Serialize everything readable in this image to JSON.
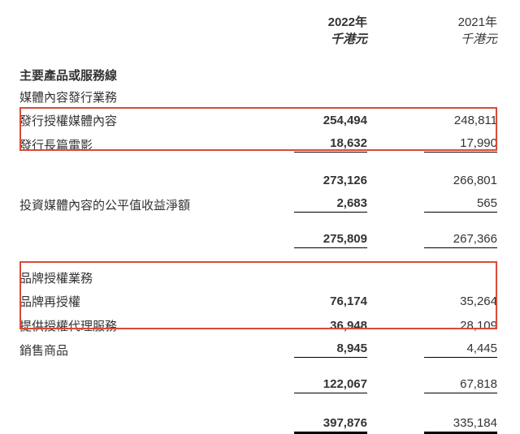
{
  "header": {
    "year2022": "2022年",
    "year2021": "2021年",
    "unit": "千港元"
  },
  "section1_title": "主要產品或服務線",
  "group1_title": "媒體內容發行業務",
  "group1_rows": [
    {
      "label": "發行授權媒體內容",
      "v2022": "254,494",
      "v2021": "248,811"
    },
    {
      "label": "發行長篇電影",
      "v2022": "18,632",
      "v2021": "17,990"
    }
  ],
  "subtotal1": {
    "v2022": "273,126",
    "v2021": "266,801"
  },
  "row_extra1": {
    "label": "投資媒體內容的公平值收益淨額",
    "v2022": "2,683",
    "v2021": "565"
  },
  "subtotal2": {
    "v2022": "275,809",
    "v2021": "267,366"
  },
  "group2_title": "品牌授權業務",
  "group2_rows": [
    {
      "label": "品牌再授權",
      "v2022": "76,174",
      "v2021": "35,264"
    },
    {
      "label": "提供授權代理服務",
      "v2022": "36,948",
      "v2021": "28,109"
    },
    {
      "label": "銷售商品",
      "v2022": "8,945",
      "v2021": "4,445"
    }
  ],
  "subtotal3": {
    "v2022": "122,067",
    "v2021": "67,818"
  },
  "grand_total": {
    "v2022": "397,876",
    "v2021": "335,184"
  },
  "colors": {
    "highlight": "#d84a38",
    "text": "#333333",
    "bg": "#ffffff"
  }
}
